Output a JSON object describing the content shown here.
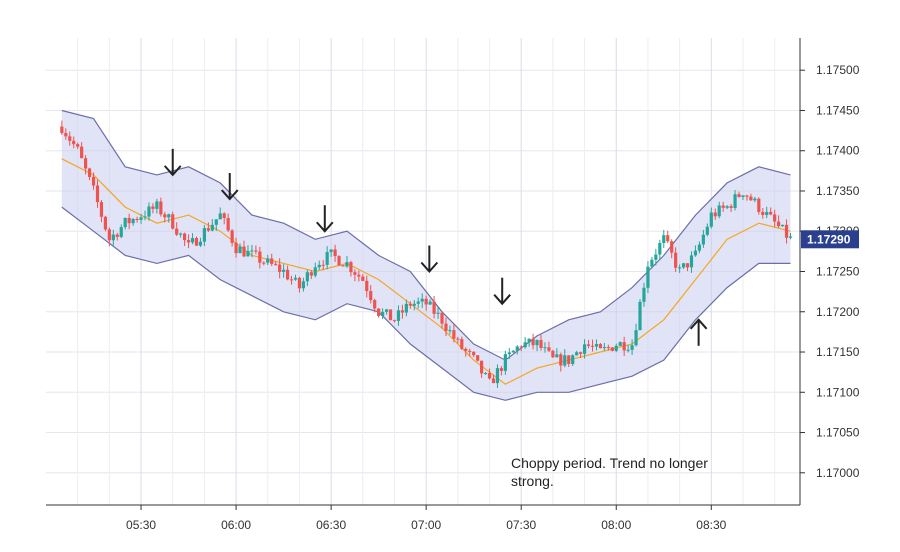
{
  "chart_data": {
    "type": "candlestick",
    "title": "",
    "xlabel": "",
    "ylabel": "",
    "ylim": [
      1.1696,
      1.1754
    ],
    "x_ticks": [
      "05:30",
      "06:00",
      "06:30",
      "07:00",
      "07:30",
      "08:00",
      "08:30"
    ],
    "y_ticks": [
      "1.17000",
      "1.17050",
      "1.17100",
      "1.17150",
      "1.17200",
      "1.17250",
      "1.17300",
      "1.17350",
      "1.17400",
      "1.17450",
      "1.17500"
    ],
    "y_tick_values": [
      1.17,
      1.1705,
      1.171,
      1.1715,
      1.172,
      1.1725,
      1.173,
      1.1735,
      1.174,
      1.1745,
      1.175
    ],
    "current_price_label": "1.17290",
    "current_price": 1.1729,
    "grid": true,
    "colors": {
      "up": "#26a69a",
      "down": "#ef5350",
      "band_fill": "#c9ccef",
      "band_line": "#6b6fa8",
      "middle_line": "#f5a623",
      "price_tag": "#2a3f8f"
    },
    "series": [
      {
        "type": "bollinger_upper",
        "time": [
          "05:05",
          "05:15",
          "05:25",
          "05:35",
          "05:45",
          "05:55",
          "06:05",
          "06:15",
          "06:25",
          "06:35",
          "06:45",
          "06:55",
          "07:05",
          "07:15",
          "07:25",
          "07:35",
          "07:45",
          "07:55",
          "08:05",
          "08:15",
          "08:25",
          "08:35",
          "08:45",
          "08:55"
        ],
        "values": [
          1.1745,
          1.1744,
          1.1738,
          1.1737,
          1.1738,
          1.1736,
          1.1732,
          1.1731,
          1.1729,
          1.173,
          1.1727,
          1.1725,
          1.172,
          1.1716,
          1.1714,
          1.1717,
          1.1719,
          1.172,
          1.1723,
          1.1727,
          1.1732,
          1.1736,
          1.1738,
          1.1737
        ]
      },
      {
        "type": "bollinger_middle",
        "time": [
          "05:05",
          "05:15",
          "05:25",
          "05:35",
          "05:45",
          "05:55",
          "06:05",
          "06:15",
          "06:25",
          "06:35",
          "06:45",
          "06:55",
          "07:05",
          "07:15",
          "07:25",
          "07:35",
          "07:45",
          "07:55",
          "08:05",
          "08:15",
          "08:25",
          "08:35",
          "08:45",
          "08:55"
        ],
        "values": [
          1.1739,
          1.1737,
          1.1733,
          1.1731,
          1.1732,
          1.173,
          1.1727,
          1.1726,
          1.1725,
          1.1726,
          1.1724,
          1.1721,
          1.1718,
          1.1714,
          1.1711,
          1.1713,
          1.1714,
          1.1715,
          1.1716,
          1.1719,
          1.1724,
          1.1729,
          1.1731,
          1.173
        ]
      },
      {
        "type": "bollinger_lower",
        "time": [
          "05:05",
          "05:15",
          "05:25",
          "05:35",
          "05:45",
          "05:55",
          "06:05",
          "06:15",
          "06:25",
          "06:35",
          "06:45",
          "06:55",
          "07:05",
          "07:15",
          "07:25",
          "07:35",
          "07:45",
          "07:55",
          "08:05",
          "08:15",
          "08:25",
          "08:35",
          "08:45",
          "08:55"
        ],
        "values": [
          1.1733,
          1.173,
          1.1727,
          1.1726,
          1.1727,
          1.1724,
          1.1722,
          1.172,
          1.1719,
          1.1721,
          1.172,
          1.1716,
          1.1713,
          1.171,
          1.1709,
          1.171,
          1.171,
          1.1711,
          1.1712,
          1.1714,
          1.1719,
          1.1723,
          1.1726,
          1.1726
        ]
      },
      {
        "type": "price_path",
        "time": [
          "05:05",
          "05:10",
          "05:15",
          "05:20",
          "05:25",
          "05:30",
          "05:35",
          "05:40",
          "05:45",
          "05:50",
          "05:55",
          "06:00",
          "06:05",
          "06:10",
          "06:15",
          "06:20",
          "06:25",
          "06:30",
          "06:35",
          "06:40",
          "06:45",
          "06:50",
          "06:55",
          "07:00",
          "07:05",
          "07:10",
          "07:15",
          "07:20",
          "07:25",
          "07:30",
          "07:35",
          "07:40",
          "07:45",
          "07:50",
          "07:55",
          "08:00",
          "08:05",
          "08:10",
          "08:15",
          "08:20",
          "08:25",
          "08:30",
          "08:35",
          "08:40",
          "08:45",
          "08:50",
          "08:55"
        ],
        "values": [
          1.1743,
          1.174,
          1.1735,
          1.1729,
          1.1731,
          1.1732,
          1.1733,
          1.1731,
          1.1728,
          1.173,
          1.1732,
          1.1728,
          1.1727,
          1.1726,
          1.1725,
          1.1723,
          1.1726,
          1.1727,
          1.1726,
          1.1724,
          1.172,
          1.1719,
          1.1721,
          1.1721,
          1.1719,
          1.1716,
          1.1714,
          1.1711,
          1.1714,
          1.1716,
          1.1716,
          1.1714,
          1.1714,
          1.1716,
          1.1715,
          1.1716,
          1.1716,
          1.1726,
          1.1729,
          1.1725,
          1.1727,
          1.1732,
          1.1733,
          1.1735,
          1.1733,
          1.1731,
          1.1729
        ]
      }
    ],
    "annotations": [
      {
        "type": "arrow_down",
        "time": "05:40",
        "price": 1.1737
      },
      {
        "type": "arrow_down",
        "time": "05:58",
        "price": 1.1734
      },
      {
        "type": "arrow_down",
        "time": "06:28",
        "price": 1.173
      },
      {
        "type": "arrow_down",
        "time": "07:01",
        "price": 1.1725
      },
      {
        "type": "arrow_down",
        "time": "07:24",
        "price": 1.1721
      },
      {
        "type": "arrow_up",
        "time": "08:26",
        "price": 1.1719
      }
    ]
  },
  "annotation_text": "Choppy period. Trend no longer strong."
}
